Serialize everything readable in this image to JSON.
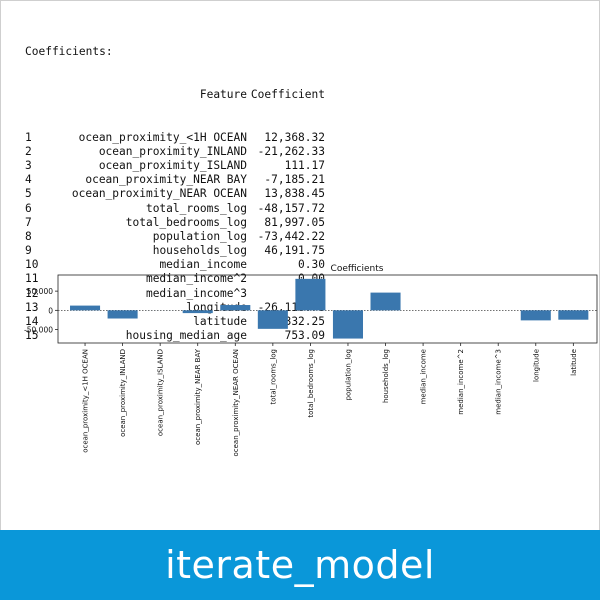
{
  "console": {
    "header_line": "Coefficients:",
    "col_feature": "Feature",
    "col_coefficient": "Coefficient",
    "rows": [
      {
        "idx": "1",
        "feature": "ocean_proximity_<1H OCEAN",
        "coef": "12,368.32"
      },
      {
        "idx": "2",
        "feature": "ocean_proximity_INLAND",
        "coef": "-21,262.33"
      },
      {
        "idx": "3",
        "feature": "ocean_proximity_ISLAND",
        "coef": "111.17"
      },
      {
        "idx": "4",
        "feature": "ocean_proximity_NEAR BAY",
        "coef": "-7,185.21"
      },
      {
        "idx": "5",
        "feature": "ocean_proximity_NEAR OCEAN",
        "coef": "13,838.45"
      },
      {
        "idx": "6",
        "feature": "total_rooms_log",
        "coef": "-48,157.72"
      },
      {
        "idx": "7",
        "feature": "total_bedrooms_log",
        "coef": "81,997.05"
      },
      {
        "idx": "8",
        "feature": "population_log",
        "coef": "-73,442.22"
      },
      {
        "idx": "9",
        "feature": "households_log",
        "coef": "46,191.75"
      },
      {
        "idx": "10",
        "feature": "median_income",
        "coef": "0.30"
      },
      {
        "idx": "11",
        "feature": "median_income^2",
        "coef": "0.00"
      },
      {
        "idx": "12",
        "feature": "median_income^3",
        "coef": "0.00"
      },
      {
        "idx": "13",
        "feature": "longitude",
        "coef": "-26,118.78"
      },
      {
        "idx": "14",
        "feature": "latitude",
        "coef": "-24,332.25"
      },
      {
        "idx": "15",
        "feature": "housing_median_age",
        "coef": "753.09"
      }
    ]
  },
  "chart_data": {
    "type": "bar",
    "title": "Coefficients",
    "categories": [
      "ocean_proximity_<1H OCEAN",
      "ocean_proximity_INLAND",
      "ocean_proximity_ISLAND",
      "ocean_proximity_NEAR BAY",
      "ocean_proximity_NEAR OCEAN",
      "total_rooms_log",
      "total_bedrooms_log",
      "population_log",
      "households_log",
      "median_income",
      "median_income^2",
      "median_income^3",
      "longitude",
      "latitude"
    ],
    "values": [
      12368.32,
      -21262.33,
      111.17,
      -7185.21,
      13838.45,
      -48157.72,
      81997.05,
      -73442.22,
      46191.75,
      0.3,
      0.0,
      0.0,
      -26118.78,
      -24332.25
    ],
    "yticks": [
      50000,
      0,
      -50000
    ],
    "ytick_labels": [
      "50,000",
      "0",
      "-50,000"
    ],
    "ylim": [
      -85000,
      92000
    ],
    "bar_color": "#3a77ae",
    "zero_line": "dotted",
    "grid": false
  },
  "banner": {
    "text": "iterate_model",
    "color": "#0a97d9"
  }
}
